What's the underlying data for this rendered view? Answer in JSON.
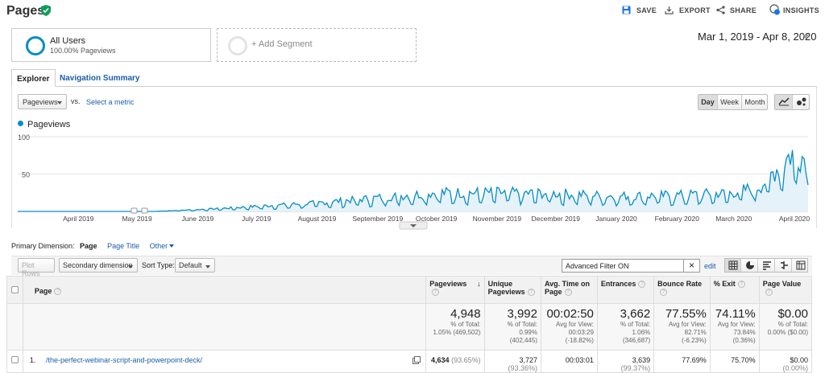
{
  "header": {
    "title": "Pages",
    "actions": {
      "save": "SAVE",
      "export": "EXPORT",
      "share": "SHARE",
      "insights": "INSIGHTS",
      "insights_badge": "9"
    }
  },
  "segments": {
    "active": {
      "name": "All Users",
      "detail": "100.00% Pageviews"
    },
    "add_label": "+ Add Segment"
  },
  "date_range": "Mar 1, 2019 - Apr 8, 2020",
  "tabs": [
    "Explorer",
    "Navigation Summary"
  ],
  "controls": {
    "metric": "Pageviews",
    "vs": "vs.",
    "select_metric": "Select a metric",
    "granularity": [
      "Day",
      "Week",
      "Month"
    ],
    "granularity_selected": "Day"
  },
  "chart_data": {
    "type": "line",
    "series": [
      {
        "name": "Pageviews",
        "color": "#058dc7"
      }
    ],
    "x_ticks": [
      "April 2019",
      "May 2019",
      "June 2019",
      "July 2019",
      "August 2019",
      "September 2019",
      "October 2019",
      "November 2019",
      "December 2019",
      "January 2020",
      "February 2020",
      "March 2020",
      "April 2020"
    ],
    "y_ticks": [
      100,
      50
    ],
    "ylim": [
      0,
      100
    ],
    "x_range": [
      "2019-03-01",
      "2020-04-08"
    ],
    "trend_points": [
      [
        "2019-03-01",
        0
      ],
      [
        "2019-05-10",
        0
      ],
      [
        "2019-05-20",
        1
      ],
      [
        "2019-06-10",
        3
      ],
      [
        "2019-07-01",
        6
      ],
      [
        "2019-08-01",
        10
      ],
      [
        "2019-09-01",
        16
      ],
      [
        "2019-10-01",
        22
      ],
      [
        "2019-11-01",
        22
      ],
      [
        "2019-12-01",
        21
      ],
      [
        "2020-01-01",
        18
      ],
      [
        "2020-02-01",
        19
      ],
      [
        "2020-03-01",
        22
      ],
      [
        "2020-03-15",
        30
      ],
      [
        "2020-03-25",
        55
      ],
      [
        "2020-04-01",
        70
      ],
      [
        "2020-04-08",
        60
      ]
    ],
    "grid": true,
    "fill": true
  },
  "primary_dimension": {
    "label": "Primary Dimension:",
    "options": [
      "Page",
      "Page Title",
      "Other"
    ],
    "selected": "Page"
  },
  "table_controls": {
    "plot_rows": "Plot Rows",
    "secondary_dimension": "Secondary dimension",
    "sort_type_label": "Sort Type:",
    "sort_type": "Default",
    "filter": "Advanced Filter ON",
    "edit": "edit"
  },
  "table": {
    "columns": [
      {
        "label": "Page"
      },
      {
        "label": "Pageviews"
      },
      {
        "label": "Unique Pageviews"
      },
      {
        "label": "Avg. Time on Page"
      },
      {
        "label": "Entrances"
      },
      {
        "label": "Bounce Rate"
      },
      {
        "label": "% Exit"
      },
      {
        "label": "Page Value"
      }
    ],
    "totals": [
      {
        "value": "4,948",
        "l1": "% of Total:",
        "l2": "1.05% (469,502)"
      },
      {
        "value": "3,992",
        "l1": "% of Total:",
        "l2": "0.99%",
        "l3": "(402,445)"
      },
      {
        "value": "00:02:50",
        "l1": "Avg for View:",
        "l2": "00:03:29",
        "l3": "(-18.82%)"
      },
      {
        "value": "3,662",
        "l1": "% of Total:",
        "l2": "1.06%",
        "l3": "(346,687)"
      },
      {
        "value": "77.55%",
        "l1": "Avg for View:",
        "l2": "82.71%",
        "l3": "(-6.23%)"
      },
      {
        "value": "74.11%",
        "l1": "Avg for View:",
        "l2": "73.84%",
        "l3": "(0.36%)"
      },
      {
        "value": "$0.00",
        "l1": "% of Total:",
        "l2": "0.00% ($0.00)"
      }
    ],
    "rows": [
      {
        "index": "1.",
        "page": "/the-perfect-webinar-script-and-powerpoint-deck/",
        "pageviews": "4,634",
        "pageviews_pct": "(93.65%)",
        "unique": "3,727",
        "unique_pct": "(93.36%)",
        "avg_time": "00:03:01",
        "entrances": "3,639",
        "entrances_pct": "(99.37%)",
        "bounce": "77.69%",
        "exit": "75.70%",
        "value": "$0.00",
        "value_pct": "(0.00%)"
      }
    ]
  }
}
